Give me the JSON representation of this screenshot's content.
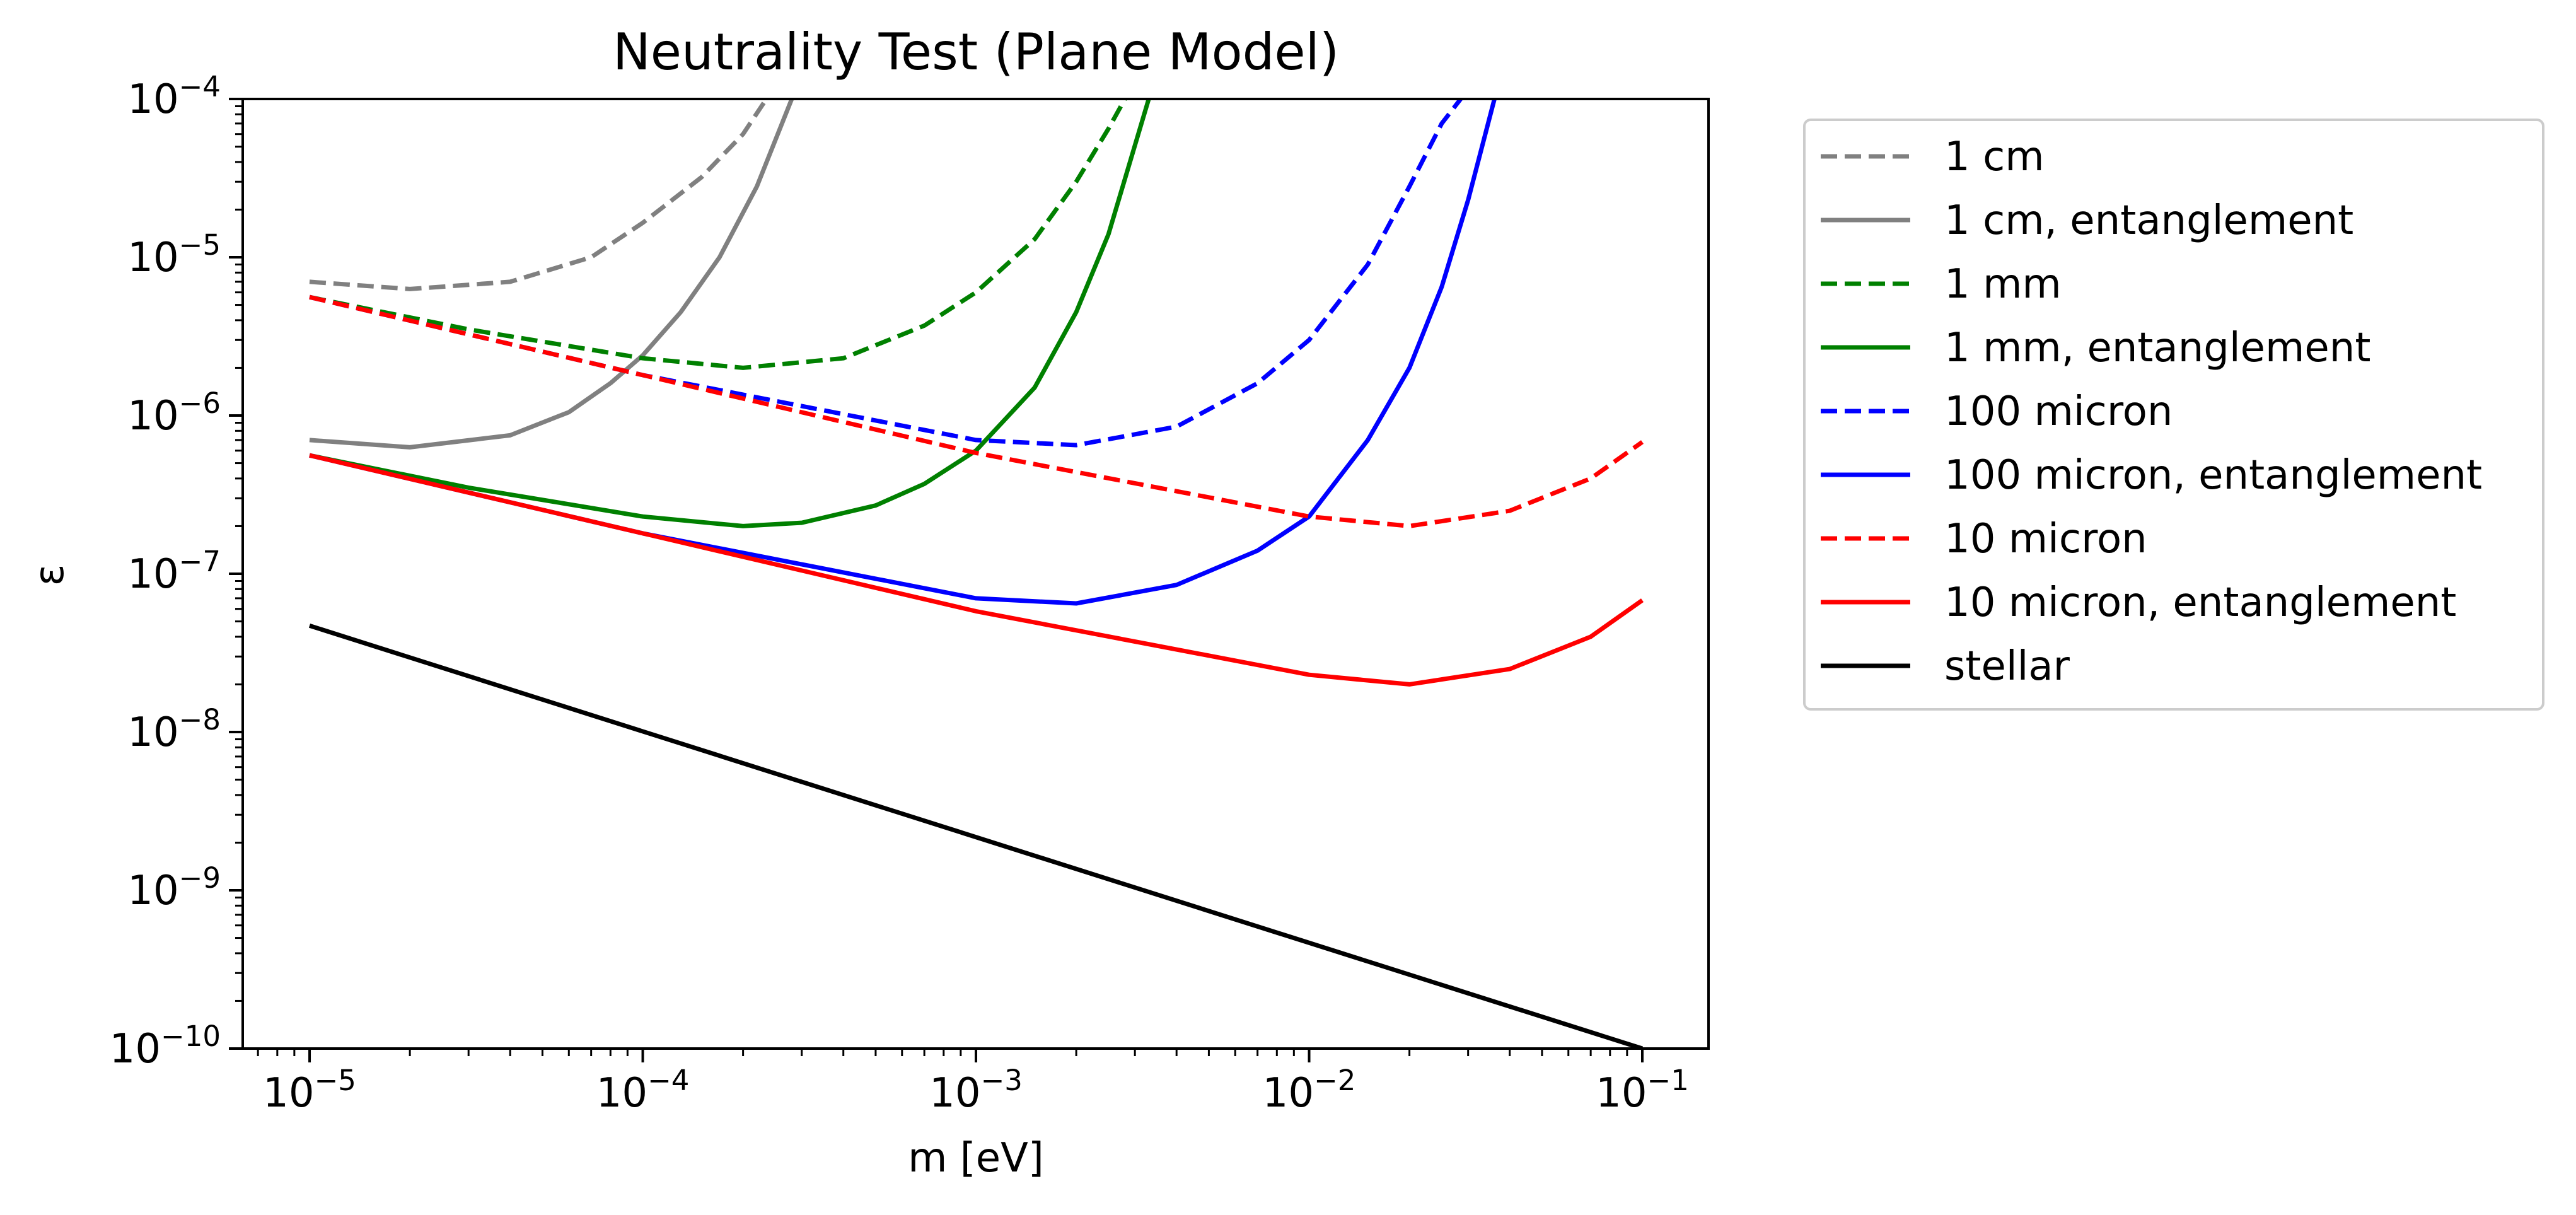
{
  "chart_data": {
    "type": "line",
    "title": "Neutrality Test (Plane Model)",
    "xlabel": "m [eV]",
    "ylabel": "ε",
    "xscale": "log",
    "yscale": "log",
    "xlim": [
      6.3e-06,
      0.158
    ],
    "ylim": [
      1e-10,
      0.0001
    ],
    "x_tick_labels": [
      {
        "value": 1e-05,
        "base": "10",
        "exp": "−5"
      },
      {
        "value": 0.0001,
        "base": "10",
        "exp": "−4"
      },
      {
        "value": 0.001,
        "base": "10",
        "exp": "−3"
      },
      {
        "value": 0.01,
        "base": "10",
        "exp": "−2"
      },
      {
        "value": 0.1,
        "base": "10",
        "exp": "−1"
      }
    ],
    "y_tick_labels": [
      {
        "value": 0.0001,
        "base": "10",
        "exp": "−4"
      },
      {
        "value": 1e-05,
        "base": "10",
        "exp": "−5"
      },
      {
        "value": 1e-06,
        "base": "10",
        "exp": "−6"
      },
      {
        "value": 1e-07,
        "base": "10",
        "exp": "−7"
      },
      {
        "value": 1e-08,
        "base": "10",
        "exp": "−8"
      },
      {
        "value": 1e-09,
        "base": "10",
        "exp": "−9"
      },
      {
        "value": 1e-10,
        "base": "10",
        "exp": "−10"
      }
    ],
    "grid": false,
    "legend_position": "outside-right",
    "series": [
      {
        "name": "1 cm",
        "color": "#808080",
        "dashed": true,
        "x": [
          1e-05,
          2e-05,
          4e-05,
          7e-05,
          0.0001,
          0.00015,
          0.0002,
          0.000235
        ],
        "y": [
          7e-06,
          6.3e-06,
          7e-06,
          1e-05,
          1.65e-05,
          3.2e-05,
          6e-05,
          0.0001
        ]
      },
      {
        "name": "1 cm, entanglement",
        "color": "#808080",
        "dashed": false,
        "x": [
          1e-05,
          2e-05,
          4e-05,
          6e-05,
          8e-05,
          0.0001,
          0.00013,
          0.00017,
          0.00022,
          0.00028
        ],
        "y": [
          7e-07,
          6.3e-07,
          7.5e-07,
          1.05e-06,
          1.6e-06,
          2.4e-06,
          4.5e-06,
          1e-05,
          2.8e-05,
          0.0001
        ]
      },
      {
        "name": "1 mm",
        "color": "#008000",
        "dashed": true,
        "x": [
          1e-05,
          3e-05,
          0.0001,
          0.0002,
          0.0004,
          0.0007,
          0.001,
          0.0015,
          0.002,
          0.0025,
          0.0028
        ],
        "y": [
          5.6e-06,
          3.5e-06,
          2.3e-06,
          2e-06,
          2.3e-06,
          3.7e-06,
          6e-06,
          1.3e-05,
          3e-05,
          6.5e-05,
          0.0001
        ]
      },
      {
        "name": "1 mm, entanglement",
        "color": "#008000",
        "dashed": false,
        "x": [
          1e-05,
          3e-05,
          0.0001,
          0.0002,
          0.0003,
          0.0005,
          0.0007,
          0.001,
          0.0015,
          0.002,
          0.0025,
          0.0033
        ],
        "y": [
          5.6e-07,
          3.5e-07,
          2.3e-07,
          2e-07,
          2.1e-07,
          2.7e-07,
          3.7e-07,
          6e-07,
          1.5e-06,
          4.5e-06,
          1.4e-05,
          0.0001
        ]
      },
      {
        "name": "100 micron",
        "color": "#0000ff",
        "dashed": true,
        "x": [
          1e-05,
          0.0001,
          0.001,
          0.002,
          0.004,
          0.007,
          0.01,
          0.015,
          0.02,
          0.025,
          0.0285
        ],
        "y": [
          5.6e-06,
          1.8e-06,
          7e-07,
          6.5e-07,
          8.5e-07,
          1.6e-06,
          3e-06,
          9e-06,
          2.8e-05,
          7e-05,
          0.0001
        ]
      },
      {
        "name": "100 micron, entanglement",
        "color": "#0000ff",
        "dashed": false,
        "x": [
          1e-05,
          0.0001,
          0.001,
          0.002,
          0.004,
          0.007,
          0.01,
          0.015,
          0.02,
          0.025,
          0.03,
          0.036
        ],
        "y": [
          5.6e-07,
          1.8e-07,
          7e-08,
          6.5e-08,
          8.5e-08,
          1.4e-07,
          2.3e-07,
          7e-07,
          2e-06,
          6.5e-06,
          2.3e-05,
          0.0001
        ]
      },
      {
        "name": "10 micron",
        "color": "#ff0000",
        "dashed": true,
        "x": [
          1e-05,
          0.0001,
          0.001,
          0.01,
          0.02,
          0.04,
          0.07,
          0.1
        ],
        "y": [
          5.6e-06,
          1.8e-06,
          5.8e-07,
          2.3e-07,
          2e-07,
          2.5e-07,
          4e-07,
          6.8e-07
        ]
      },
      {
        "name": "10 micron, entanglement",
        "color": "#ff0000",
        "dashed": false,
        "x": [
          1e-05,
          0.0001,
          0.001,
          0.01,
          0.02,
          0.04,
          0.07,
          0.1
        ],
        "y": [
          5.6e-07,
          1.8e-07,
          5.8e-08,
          2.3e-08,
          2e-08,
          2.5e-08,
          4e-08,
          6.8e-08
        ]
      },
      {
        "name": "stellar",
        "color": "#000000",
        "dashed": false,
        "x": [
          1e-05,
          0.1
        ],
        "y": [
          4.7e-08,
          1e-10
        ]
      }
    ]
  }
}
